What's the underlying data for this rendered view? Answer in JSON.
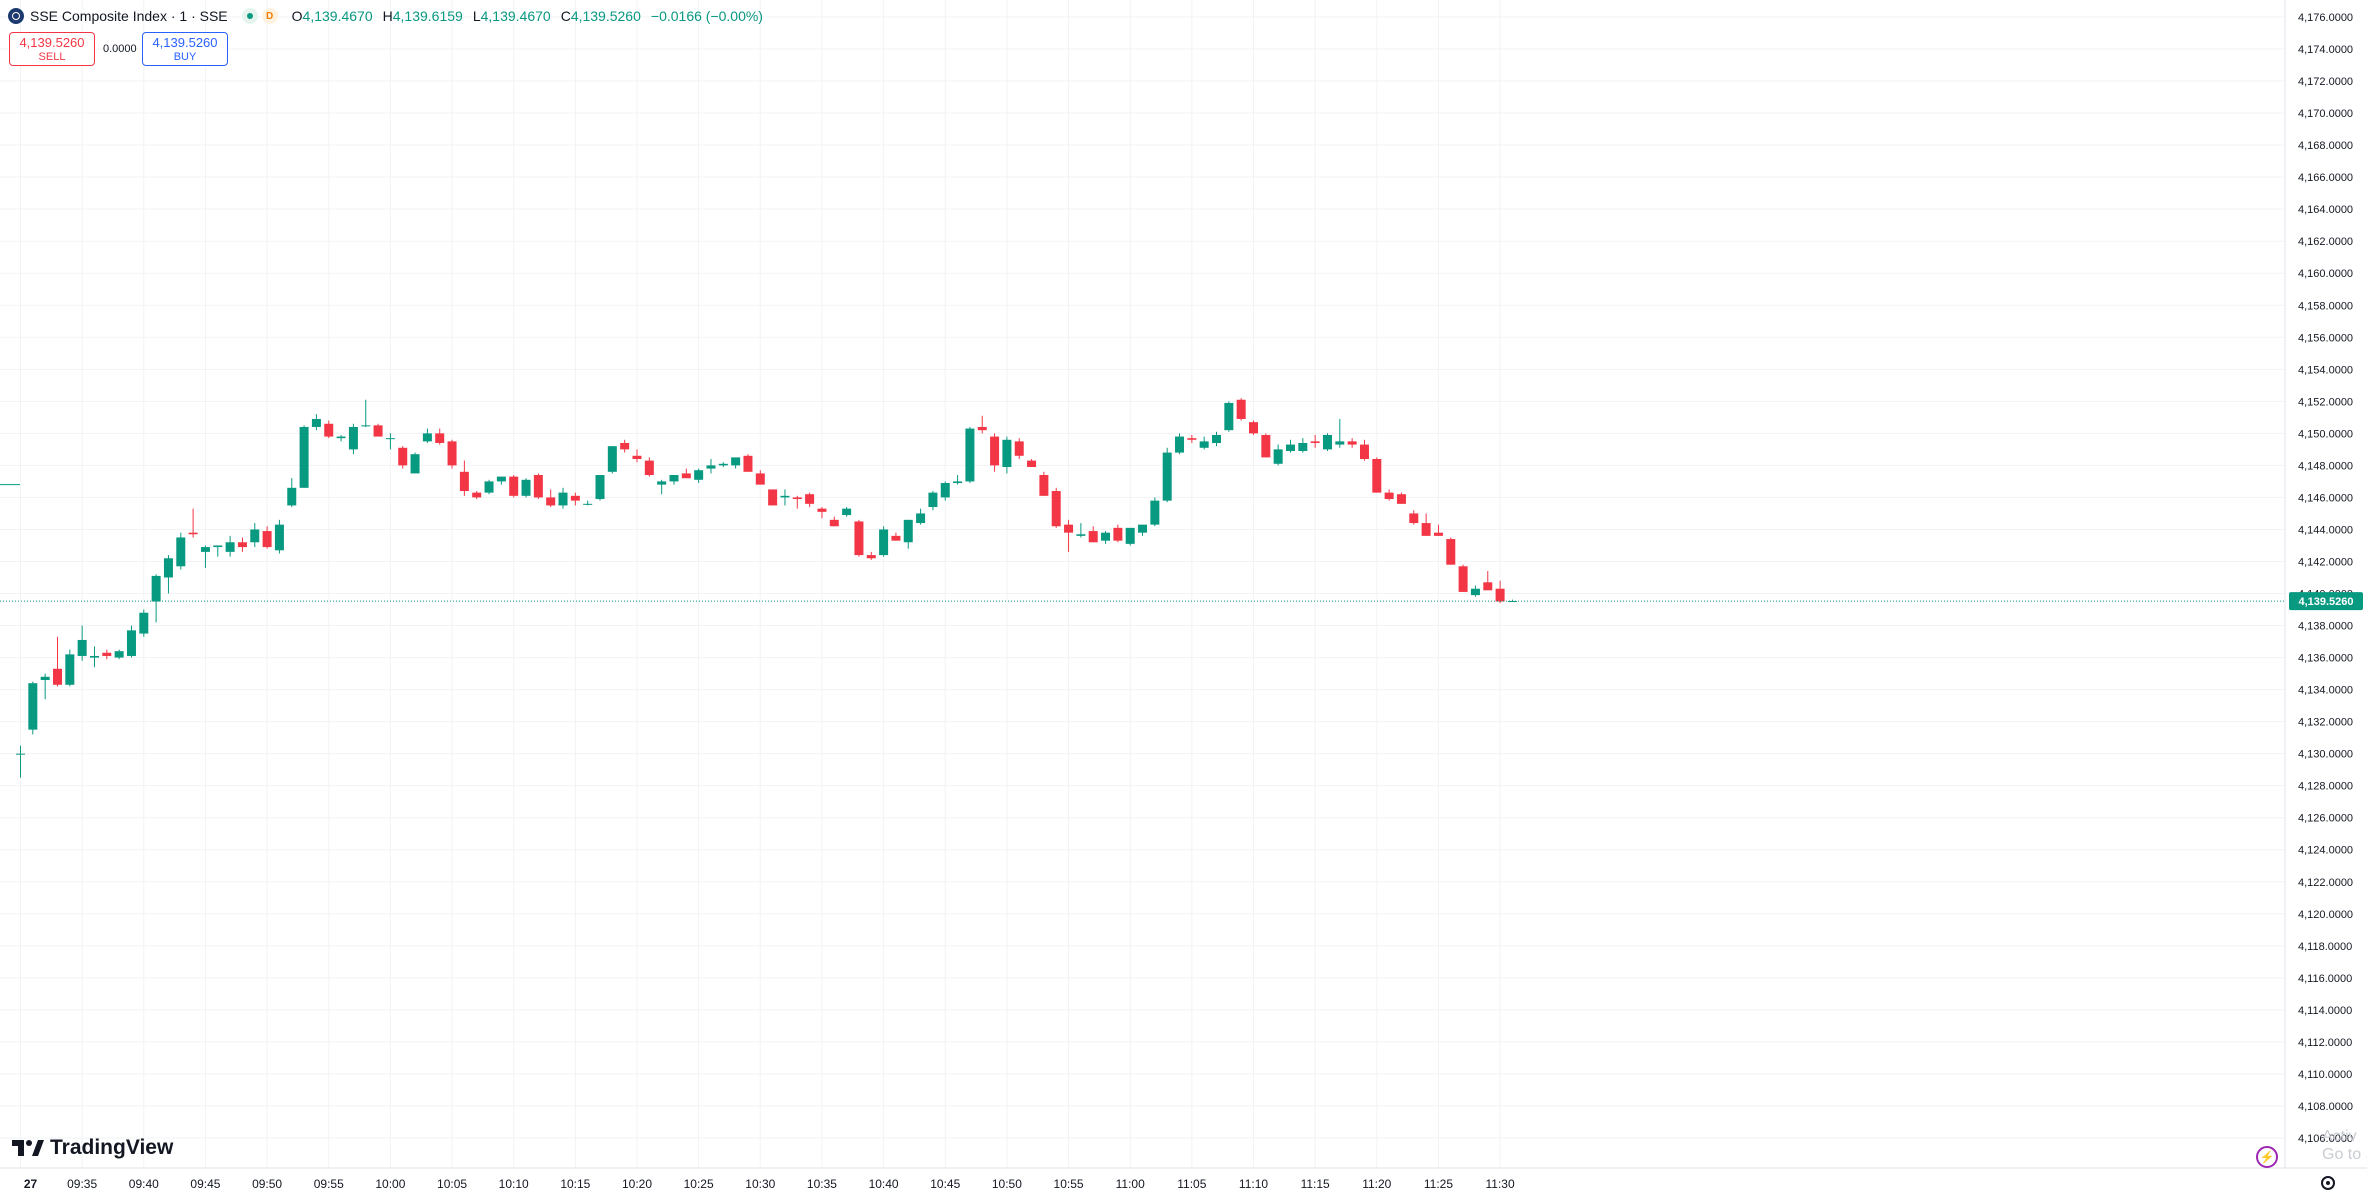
{
  "legend": {
    "title": "SSE Composite Index · 1 · SSE",
    "badge": "D",
    "o_label": "O",
    "o_value": "4,139.4670",
    "h_label": "H",
    "h_value": "4,139.6159",
    "l_label": "L",
    "l_value": "4,139.4670",
    "c_label": "C",
    "c_value": "4,139.5260",
    "change": "−0.0166 (−0.00%)"
  },
  "trade": {
    "sell_price": "4,139.5260",
    "sell_label": "SELL",
    "buy_price": "4,139.5260",
    "buy_label": "BUY",
    "spread": "0.0000"
  },
  "brand": {
    "name": "TradingView"
  },
  "watermark": {
    "line1": "Activ",
    "line2": "Go to S"
  },
  "colors": {
    "up": "#089981",
    "down": "#f23645",
    "grid": "#f2f3f5",
    "axis_text": "#131722",
    "accent": "#089981"
  },
  "icons": {
    "symbol": "sse-logo-icon",
    "status": "market-open-dot-icon",
    "brand": "tradingview-logo-icon",
    "bolt": "lightning-icon",
    "settings": "gear-icon"
  },
  "chart_data": {
    "type": "candlestick",
    "title": "SSE Composite Index · 1 · SSE",
    "ylim": [
      4105,
      4177
    ],
    "grid": true,
    "y_ticks": [
      "4,176.0000",
      "4,174.0000",
      "4,172.0000",
      "4,170.0000",
      "4,168.0000",
      "4,166.0000",
      "4,164.0000",
      "4,162.0000",
      "4,160.0000",
      "4,158.0000",
      "4,156.0000",
      "4,154.0000",
      "4,152.0000",
      "4,150.0000",
      "4,148.0000",
      "4,146.0000",
      "4,144.0000",
      "4,142.0000",
      "4,140.0000",
      "4,138.0000",
      "4,136.0000",
      "4,134.0000",
      "4,132.0000",
      "4,130.0000",
      "4,128.0000",
      "4,126.0000",
      "4,124.0000",
      "4,122.0000",
      "4,120.0000",
      "4,118.0000",
      "4,116.0000",
      "4,114.0000",
      "4,112.0000",
      "4,110.0000",
      "4,108.0000",
      "4,106.0000"
    ],
    "x_ticks": [
      "27",
      "09:35",
      "09:40",
      "09:45",
      "09:50",
      "09:55",
      "10:00",
      "10:05",
      "10:10",
      "10:15",
      "10:20",
      "10:25",
      "10:30",
      "10:35",
      "10:40",
      "10:45",
      "10:50",
      "10:55",
      "11:00",
      "11:05",
      "11:10",
      "11:15",
      "11:20",
      "11:25",
      "11:30"
    ],
    "last_price": 4139.526,
    "last_price_label": "4,139.5260",
    "first_time": "09:30",
    "candles": [
      {
        "o": 4130.0,
        "h": 4130.5,
        "l": 4128.5,
        "c": 4130.0
      },
      {
        "o": 4131.5,
        "h": 4134.5,
        "l": 4131.2,
        "c": 4134.4
      },
      {
        "o": 4134.6,
        "h": 4135.0,
        "l": 4133.4,
        "c": 4134.8
      },
      {
        "o": 4135.3,
        "h": 4137.3,
        "l": 4134.2,
        "c": 4134.3
      },
      {
        "o": 4134.3,
        "h": 4136.5,
        "l": 4134.2,
        "c": 4136.2
      },
      {
        "o": 4136.1,
        "h": 4138.0,
        "l": 4135.8,
        "c": 4137.1
      },
      {
        "o": 4136.0,
        "h": 4136.7,
        "l": 4135.4,
        "c": 4136.1
      },
      {
        "o": 4136.3,
        "h": 4136.5,
        "l": 4135.9,
        "c": 4136.1
      },
      {
        "o": 4136.0,
        "h": 4136.5,
        "l": 4135.9,
        "c": 4136.4
      },
      {
        "o": 4136.1,
        "h": 4138.0,
        "l": 4136.0,
        "c": 4137.7
      },
      {
        "o": 4137.5,
        "h": 4139.0,
        "l": 4137.3,
        "c": 4138.8
      },
      {
        "o": 4139.5,
        "h": 4141.2,
        "l": 4138.2,
        "c": 4141.1
      },
      {
        "o": 4141.0,
        "h": 4142.4,
        "l": 4140.0,
        "c": 4142.2
      },
      {
        "o": 4141.7,
        "h": 4143.8,
        "l": 4141.5,
        "c": 4143.5
      },
      {
        "o": 4143.8,
        "h": 4145.3,
        "l": 4143.5,
        "c": 4143.7
      },
      {
        "o": 4142.6,
        "h": 4143.0,
        "l": 4141.6,
        "c": 4142.9
      },
      {
        "o": 4142.9,
        "h": 4143.0,
        "l": 4142.3,
        "c": 4143.0
      },
      {
        "o": 4142.6,
        "h": 4143.6,
        "l": 4142.3,
        "c": 4143.2
      },
      {
        "o": 4143.2,
        "h": 4143.5,
        "l": 4142.6,
        "c": 4142.9
      },
      {
        "o": 4143.2,
        "h": 4144.4,
        "l": 4142.9,
        "c": 4144.0
      },
      {
        "o": 4143.9,
        "h": 4144.2,
        "l": 4142.8,
        "c": 4142.9
      },
      {
        "o": 4142.7,
        "h": 4144.6,
        "l": 4142.5,
        "c": 4144.3
      },
      {
        "o": 4145.5,
        "h": 4147.2,
        "l": 4145.4,
        "c": 4146.6
      },
      {
        "o": 4146.6,
        "h": 4150.5,
        "l": 4146.6,
        "c": 4150.4
      },
      {
        "o": 4150.4,
        "h": 4151.2,
        "l": 4150.2,
        "c": 4150.9
      },
      {
        "o": 4150.6,
        "h": 4150.8,
        "l": 4149.7,
        "c": 4149.8
      },
      {
        "o": 4149.7,
        "h": 4149.9,
        "l": 4149.5,
        "c": 4149.8
      },
      {
        "o": 4149.0,
        "h": 4150.6,
        "l": 4148.7,
        "c": 4150.4
      },
      {
        "o": 4150.5,
        "h": 4152.1,
        "l": 4150.4,
        "c": 4150.5
      },
      {
        "o": 4150.5,
        "h": 4150.6,
        "l": 4149.9,
        "c": 4149.8
      },
      {
        "o": 4149.7,
        "h": 4150.0,
        "l": 4149.0,
        "c": 4149.7
      },
      {
        "o": 4149.1,
        "h": 4149.2,
        "l": 4147.8,
        "c": 4148.0
      },
      {
        "o": 4147.5,
        "h": 4148.8,
        "l": 4147.5,
        "c": 4148.7
      },
      {
        "o": 4149.5,
        "h": 4150.3,
        "l": 4149.4,
        "c": 4150.0
      },
      {
        "o": 4150.0,
        "h": 4150.3,
        "l": 4149.3,
        "c": 4149.4
      },
      {
        "o": 4149.5,
        "h": 4149.6,
        "l": 4147.8,
        "c": 4148.0
      },
      {
        "o": 4147.6,
        "h": 4148.3,
        "l": 4146.1,
        "c": 4146.4
      },
      {
        "o": 4146.3,
        "h": 4146.4,
        "l": 4145.9,
        "c": 4146.0
      },
      {
        "o": 4146.3,
        "h": 4147.1,
        "l": 4146.2,
        "c": 4147.0
      },
      {
        "o": 4147.0,
        "h": 4147.2,
        "l": 4146.8,
        "c": 4147.3
      },
      {
        "o": 4147.3,
        "h": 4147.4,
        "l": 4146.0,
        "c": 4146.1
      },
      {
        "o": 4146.1,
        "h": 4147.2,
        "l": 4146.0,
        "c": 4147.1
      },
      {
        "o": 4147.4,
        "h": 4147.5,
        "l": 4145.9,
        "c": 4146.0
      },
      {
        "o": 4146.0,
        "h": 4146.5,
        "l": 4145.4,
        "c": 4145.5
      },
      {
        "o": 4145.5,
        "h": 4146.6,
        "l": 4145.3,
        "c": 4146.3
      },
      {
        "o": 4146.1,
        "h": 4146.3,
        "l": 4145.5,
        "c": 4145.8
      },
      {
        "o": 4145.6,
        "h": 4145.8,
        "l": 4145.5,
        "c": 4145.6
      },
      {
        "o": 4145.9,
        "h": 4147.3,
        "l": 4145.8,
        "c": 4147.4
      },
      {
        "o": 4147.6,
        "h": 4149.2,
        "l": 4147.5,
        "c": 4149.2
      },
      {
        "o": 4149.4,
        "h": 4149.6,
        "l": 4148.8,
        "c": 4149.0
      },
      {
        "o": 4148.6,
        "h": 4149.0,
        "l": 4148.2,
        "c": 4148.4
      },
      {
        "o": 4148.3,
        "h": 4148.5,
        "l": 4147.3,
        "c": 4147.4
      },
      {
        "o": 4146.8,
        "h": 4147.1,
        "l": 4146.2,
        "c": 4147.0
      },
      {
        "o": 4147.0,
        "h": 4147.4,
        "l": 4146.8,
        "c": 4147.4
      },
      {
        "o": 4147.5,
        "h": 4147.8,
        "l": 4147.2,
        "c": 4147.2
      },
      {
        "o": 4147.1,
        "h": 4147.8,
        "l": 4146.9,
        "c": 4147.7
      },
      {
        "o": 4147.8,
        "h": 4148.4,
        "l": 4147.5,
        "c": 4148.0
      },
      {
        "o": 4148.0,
        "h": 4148.2,
        "l": 4147.9,
        "c": 4148.1
      },
      {
        "o": 4148.0,
        "h": 4148.4,
        "l": 4147.8,
        "c": 4148.5
      },
      {
        "o": 4148.6,
        "h": 4148.7,
        "l": 4147.7,
        "c": 4147.6
      },
      {
        "o": 4147.5,
        "h": 4147.7,
        "l": 4146.8,
        "c": 4146.8
      },
      {
        "o": 4146.5,
        "h": 4146.5,
        "l": 4145.5,
        "c": 4145.5
      },
      {
        "o": 4146.0,
        "h": 4146.5,
        "l": 4145.5,
        "c": 4146.1
      },
      {
        "o": 4146.0,
        "h": 4146.1,
        "l": 4145.3,
        "c": 4145.9
      },
      {
        "o": 4146.2,
        "h": 4146.3,
        "l": 4145.4,
        "c": 4145.6
      },
      {
        "o": 4145.3,
        "h": 4145.4,
        "l": 4144.7,
        "c": 4145.1
      },
      {
        "o": 4144.6,
        "h": 4144.8,
        "l": 4144.2,
        "c": 4144.2
      },
      {
        "o": 4144.9,
        "h": 4145.4,
        "l": 4144.8,
        "c": 4145.3
      },
      {
        "o": 4144.5,
        "h": 4144.6,
        "l": 4142.3,
        "c": 4142.4
      },
      {
        "o": 4142.4,
        "h": 4142.6,
        "l": 4142.1,
        "c": 4142.2
      },
      {
        "o": 4142.4,
        "h": 4144.2,
        "l": 4142.3,
        "c": 4144.0
      },
      {
        "o": 4143.6,
        "h": 4143.8,
        "l": 4143.3,
        "c": 4143.3
      },
      {
        "o": 4143.2,
        "h": 4144.6,
        "l": 4142.8,
        "c": 4144.6
      },
      {
        "o": 4144.4,
        "h": 4145.3,
        "l": 4144.3,
        "c": 4145.0
      },
      {
        "o": 4145.4,
        "h": 4146.4,
        "l": 4145.2,
        "c": 4146.3
      },
      {
        "o": 4146.0,
        "h": 4147.0,
        "l": 4145.8,
        "c": 4146.9
      },
      {
        "o": 4146.9,
        "h": 4147.4,
        "l": 4146.8,
        "c": 4147.0
      },
      {
        "o": 4147.0,
        "h": 4150.4,
        "l": 4146.9,
        "c": 4150.3
      },
      {
        "o": 4150.4,
        "h": 4151.1,
        "l": 4150.0,
        "c": 4150.2
      },
      {
        "o": 4149.8,
        "h": 4150.0,
        "l": 4147.6,
        "c": 4148.0
      },
      {
        "o": 4147.9,
        "h": 4149.8,
        "l": 4147.5,
        "c": 4149.6
      },
      {
        "o": 4149.5,
        "h": 4149.7,
        "l": 4148.4,
        "c": 4148.6
      },
      {
        "o": 4148.3,
        "h": 4148.4,
        "l": 4148.0,
        "c": 4147.9
      },
      {
        "o": 4147.4,
        "h": 4147.6,
        "l": 4146.1,
        "c": 4146.1
      },
      {
        "o": 4146.4,
        "h": 4146.6,
        "l": 4144.1,
        "c": 4144.2
      },
      {
        "o": 4144.3,
        "h": 4144.6,
        "l": 4142.6,
        "c": 4143.8
      },
      {
        "o": 4143.6,
        "h": 4144.4,
        "l": 4143.5,
        "c": 4143.7
      },
      {
        "o": 4143.9,
        "h": 4144.2,
        "l": 4143.2,
        "c": 4143.2
      },
      {
        "o": 4143.3,
        "h": 4143.9,
        "l": 4143.1,
        "c": 4143.8
      },
      {
        "o": 4144.1,
        "h": 4144.3,
        "l": 4143.2,
        "c": 4143.3
      },
      {
        "o": 4143.1,
        "h": 4144.0,
        "l": 4143.0,
        "c": 4144.1
      },
      {
        "o": 4143.8,
        "h": 4144.3,
        "l": 4143.6,
        "c": 4144.3
      },
      {
        "o": 4144.3,
        "h": 4146.0,
        "l": 4144.2,
        "c": 4145.8
      },
      {
        "o": 4145.8,
        "h": 4149.1,
        "l": 4145.7,
        "c": 4148.8
      },
      {
        "o": 4148.8,
        "h": 4150.0,
        "l": 4148.7,
        "c": 4149.8
      },
      {
        "o": 4149.7,
        "h": 4149.9,
        "l": 4149.4,
        "c": 4149.6
      },
      {
        "o": 4149.1,
        "h": 4149.8,
        "l": 4149.0,
        "c": 4149.5
      },
      {
        "o": 4149.4,
        "h": 4150.1,
        "l": 4149.2,
        "c": 4149.9
      },
      {
        "o": 4150.2,
        "h": 4152.0,
        "l": 4150.1,
        "c": 4151.9
      },
      {
        "o": 4152.1,
        "h": 4152.2,
        "l": 4150.8,
        "c": 4150.9
      },
      {
        "o": 4150.7,
        "h": 4150.8,
        "l": 4149.9,
        "c": 4150.0
      },
      {
        "o": 4149.9,
        "h": 4150.0,
        "l": 4148.5,
        "c": 4148.5
      },
      {
        "o": 4148.1,
        "h": 4149.3,
        "l": 4148.0,
        "c": 4149.0
      },
      {
        "o": 4148.9,
        "h": 4149.6,
        "l": 4148.8,
        "c": 4149.3
      },
      {
        "o": 4148.9,
        "h": 4149.7,
        "l": 4148.8,
        "c": 4149.4
      },
      {
        "o": 4149.5,
        "h": 4149.9,
        "l": 4149.1,
        "c": 4149.4
      },
      {
        "o": 4149.0,
        "h": 4150.0,
        "l": 4148.9,
        "c": 4149.9
      },
      {
        "o": 4149.3,
        "h": 4150.9,
        "l": 4149.1,
        "c": 4149.5
      },
      {
        "o": 4149.5,
        "h": 4149.7,
        "l": 4149.1,
        "c": 4149.3
      },
      {
        "o": 4149.3,
        "h": 4149.6,
        "l": 4148.3,
        "c": 4148.4
      },
      {
        "o": 4148.4,
        "h": 4148.5,
        "l": 4146.3,
        "c": 4146.3
      },
      {
        "o": 4146.3,
        "h": 4146.5,
        "l": 4145.8,
        "c": 4145.9
      },
      {
        "o": 4146.2,
        "h": 4146.3,
        "l": 4145.6,
        "c": 4145.6
      },
      {
        "o": 4145.0,
        "h": 4145.2,
        "l": 4144.3,
        "c": 4144.4
      },
      {
        "o": 4144.4,
        "h": 4145.0,
        "l": 4143.6,
        "c": 4143.6
      },
      {
        "o": 4143.8,
        "h": 4144.3,
        "l": 4143.6,
        "c": 4143.6
      },
      {
        "o": 4143.4,
        "h": 4143.5,
        "l": 4141.8,
        "c": 4141.8
      },
      {
        "o": 4141.7,
        "h": 4141.8,
        "l": 4140.1,
        "c": 4140.1
      },
      {
        "o": 4139.9,
        "h": 4140.5,
        "l": 4139.8,
        "c": 4140.3
      },
      {
        "o": 4140.7,
        "h": 4141.4,
        "l": 4140.4,
        "c": 4140.2
      },
      {
        "o": 4140.3,
        "h": 4140.8,
        "l": 4139.4,
        "c": 4139.5
      },
      {
        "o": 4139.47,
        "h": 4139.62,
        "l": 4139.47,
        "c": 4139.53
      }
    ]
  }
}
